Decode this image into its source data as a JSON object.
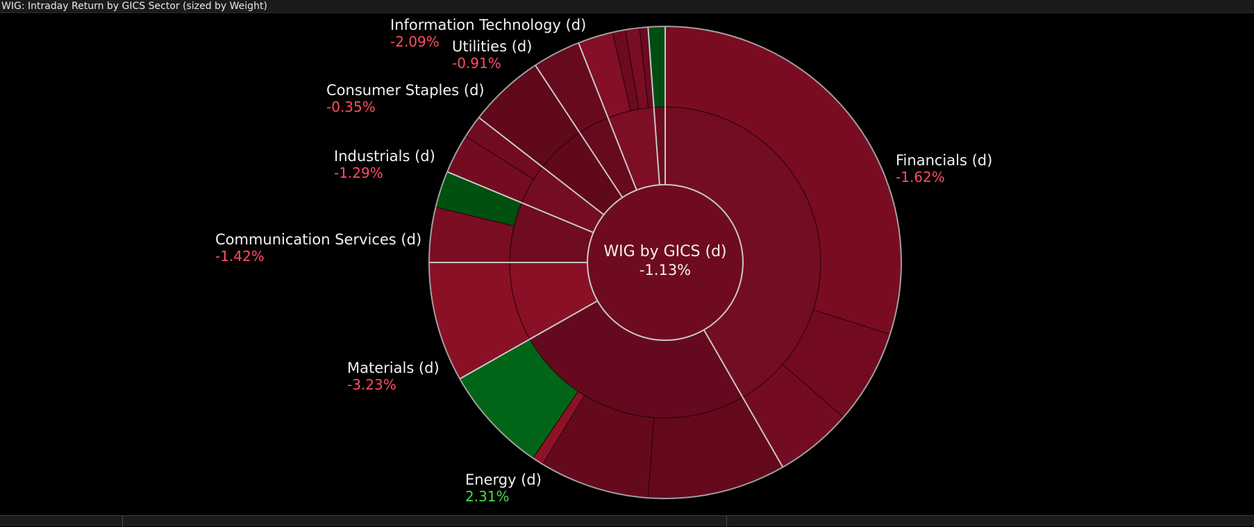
{
  "window": {
    "title": "WIG: Intraday Return by GICS Sector (sized by Weight)"
  },
  "colors": {
    "background": "#000000",
    "negative_label": "#ff4d63",
    "positive_label": "#4cdc4c",
    "segment_border": "#c8c8c8",
    "outer_ring": "#a0a0a0"
  },
  "chart_data": {
    "type": "sunburst",
    "title": "WIG: Intraday Return by GICS Sector (sized by Weight)",
    "center": {
      "name": "WIG by GICS (d)",
      "return_label": "-1.13%",
      "return": -1.13,
      "color": "#6f0b1f"
    },
    "sectors": [
      {
        "name": "Financials (d)",
        "return_label": "-1.62%",
        "return": -1.62,
        "weight": 43.2,
        "color": "#730d21",
        "children": [
          {
            "weight": 31.0,
            "color": "#7a0c22"
          },
          {
            "weight": 6.7,
            "color": "#720b20"
          },
          {
            "weight": 5.5,
            "color": "#730c22"
          }
        ]
      },
      {
        "name": "Energy (d)",
        "return_label": "2.31%",
        "return": 2.31,
        "weight": 26.0,
        "color": "#650a1e",
        "children": [
          {
            "weight": 9.8,
            "color": "#64091c"
          },
          {
            "weight": 7.8,
            "color": "#650a1d"
          },
          {
            "weight": 0.8,
            "color": "#8c1228"
          },
          {
            "weight": 7.6,
            "color": "#016518"
          }
        ]
      },
      {
        "name": "Materials (d)",
        "return_label": "-3.23%",
        "return": -3.23,
        "weight": 8.5,
        "color": "#8a1026",
        "children": [
          {
            "weight": 8.5,
            "color": "#8a1026"
          }
        ]
      },
      {
        "name": "Communication Services (d)",
        "return_label": "-1.42%",
        "return": -1.42,
        "weight": 6.5,
        "color": "#6f0c1f",
        "children": [
          {
            "weight": 3.9,
            "color": "#7b0d22"
          },
          {
            "weight": 2.6,
            "color": "#005010"
          }
        ]
      },
      {
        "name": "Industrials (d)",
        "return_label": "-1.29%",
        "return": -1.29,
        "weight": 4.4,
        "color": "#740d22",
        "children": [
          {
            "weight": 2.8,
            "color": "#730c21"
          },
          {
            "weight": 1.6,
            "color": "#710b20"
          }
        ]
      },
      {
        "name": "Consumer Staples (d)",
        "return_label": "-0.35%",
        "return": -0.35,
        "weight": 5.4,
        "color": "#5f091b",
        "children": [
          {
            "weight": 5.4,
            "color": "#5f091b"
          }
        ]
      },
      {
        "name": "Utilities (d)",
        "return_label": "-0.91%",
        "return": -0.91,
        "weight": 3.4,
        "color": "#680a1e",
        "children": [
          {
            "weight": 3.4,
            "color": "#670a1e"
          }
        ]
      },
      {
        "name": "Information Technology (d)",
        "return_label": "-2.09%",
        "return": -2.09,
        "weight": 5.0,
        "color": "#7e0e24",
        "children": [
          {
            "weight": 2.5,
            "color": "#840f26"
          },
          {
            "weight": 0.9,
            "color": "#6c0b20"
          },
          {
            "weight": 1.0,
            "color": "#780d23"
          },
          {
            "weight": 0.6,
            "color": "#6a0b1f"
          }
        ]
      },
      {
        "name": "",
        "return_label": "",
        "weight": 1.2,
        "color": "#6a0b1f",
        "children": [
          {
            "weight": 1.2,
            "color": "#004d12"
          }
        ]
      }
    ]
  }
}
